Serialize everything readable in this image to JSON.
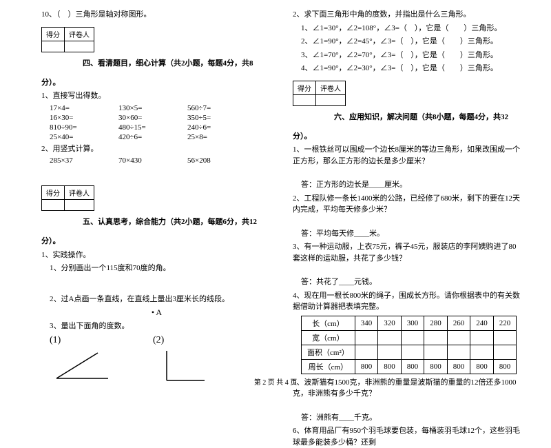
{
  "left": {
    "q10": "10、（　）三角形是轴对称图形。",
    "score_h1": "得分",
    "score_h2": "评卷人",
    "sec4_title": "四、看清题目，细心计算（共2小题，每题4分，共8",
    "fen": "分）。",
    "q4_1": "1、直接写出得数。",
    "calc": [
      [
        "17×4=",
        "130×5=",
        "560÷7="
      ],
      [
        "16×30=",
        "30×60=",
        "350÷5="
      ],
      [
        "810÷90=",
        "480÷15=",
        "240÷6="
      ],
      [
        "25×40=",
        "420÷6=",
        "25×8="
      ]
    ],
    "q4_2": "2、用竖式计算。",
    "fmt": [
      "285×37",
      "70×430",
      "56×208"
    ],
    "sec5_title": "五、认真思考，综合能力（共2小题，每题6分，共12",
    "q5_1": "1、实践操作。",
    "q5_1_1": "1、分别画出一个115度和70度的角。",
    "q5_1_2": "2、过A点画一条直线，在直线上量出3厘米长的线段。",
    "dotA": "• A",
    "q5_1_3": "3、量出下面角的度数。",
    "lbl1": "(1)",
    "lbl2": "(2)"
  },
  "right": {
    "q2": "2、求下面三角形中角的度数，并指出是什么三角形。",
    "tri": [
      "1、∠1=30°，∠2=108°，∠3=（　），它是（　　）三角形。",
      "2、∠1=90°，∠2=45°，∠3=（　），它是（　　）三角形。",
      "3、∠1=70°，∠2=70°，∠3=（　），它是（　　）三角形。",
      "4、∠1=90°，∠2=30°，∠3=（　），它是（　　）三角形。"
    ],
    "score_h1": "得分",
    "score_h2": "评卷人",
    "sec6_title": "六、应用知识，解决问题（共8小题，每题4分，共32",
    "fen": "分）。",
    "q6_1": "1、一根铁丝可以围成一个边长8厘米的等边三角形，如果改围成一个正方形，那么正方形的边长是多少厘米？",
    "a6_1": "答：正方形的边长是____厘米。",
    "q6_2": "2、工程队修一条长1400米的公路，已经修了680米，剩下的要在12天内完成，平均每天修多少米？",
    "a6_2": "答：平均每天修____米。",
    "q6_3": "3、有一种运动服，上衣75元，裤子45元，服装店的李阿姨购进了80套这样的运动服，共花了多少钱？",
    "a6_3": "答：共花了____元钱。",
    "q6_4": "4、现在用一根长800米的绳子，围成长方形。请你根据表中的有关数据借助计算器把表填完整。",
    "table": {
      "rows": [
        {
          "h": "长（cm）",
          "cells": [
            "340",
            "320",
            "300",
            "280",
            "260",
            "240",
            "220"
          ]
        },
        {
          "h": "宽（cm）",
          "cells": [
            "",
            "",
            "",
            "",
            "",
            "",
            ""
          ]
        },
        {
          "h": "面积（cm²）",
          "cells": [
            "",
            "",
            "",
            "",
            "",
            "",
            ""
          ]
        },
        {
          "h": "周长（cm）",
          "cells": [
            "800",
            "800",
            "800",
            "800",
            "800",
            "800",
            "800"
          ]
        }
      ]
    },
    "q6_5": "5、波斯猫有1500克，非洲熊的重量是波斯猫的重量的12倍还多1000克，非洲熊有多少千克？",
    "a6_5": "答：洲熊有____千克。",
    "q6_6": "6、体育用品厂有950个羽毛球要包装，每桶装羽毛球12个，这些羽毛球最多能装多少桶？还剩"
  },
  "footer": "第 2 页 共 4 页"
}
